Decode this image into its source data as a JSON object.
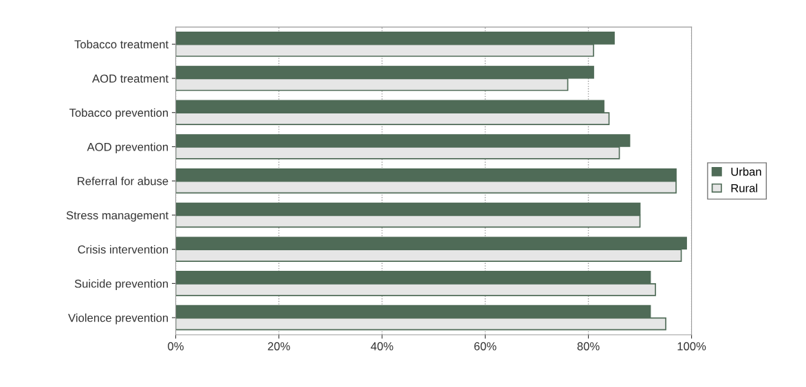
{
  "chart_data": {
    "type": "bar",
    "orientation": "horizontal",
    "categories": [
      "Tobacco treatment",
      "AOD treatment",
      "Tobacco prevention",
      "AOD prevention",
      "Referral for abuse",
      "Stress management",
      "Crisis intervention",
      "Suicide prevention",
      "Violence prevention"
    ],
    "series": [
      {
        "name": "Urban",
        "color": "#4f6b57",
        "values": [
          85,
          81,
          83,
          88,
          97,
          90,
          99,
          92,
          92
        ]
      },
      {
        "name": "Rural",
        "color": "#e6e6e6",
        "values": [
          81,
          76,
          84,
          86,
          97,
          90,
          98,
          93,
          95
        ]
      }
    ],
    "xlim": [
      0,
      100
    ],
    "xticks": [
      {
        "value": 0,
        "label": "0%"
      },
      {
        "value": 20,
        "label": "20%"
      },
      {
        "value": 40,
        "label": "40%"
      },
      {
        "value": 60,
        "label": "60%"
      },
      {
        "value": 80,
        "label": "80%"
      },
      {
        "value": 100,
        "label": "100%"
      }
    ],
    "grid": "x",
    "legend": "right"
  }
}
